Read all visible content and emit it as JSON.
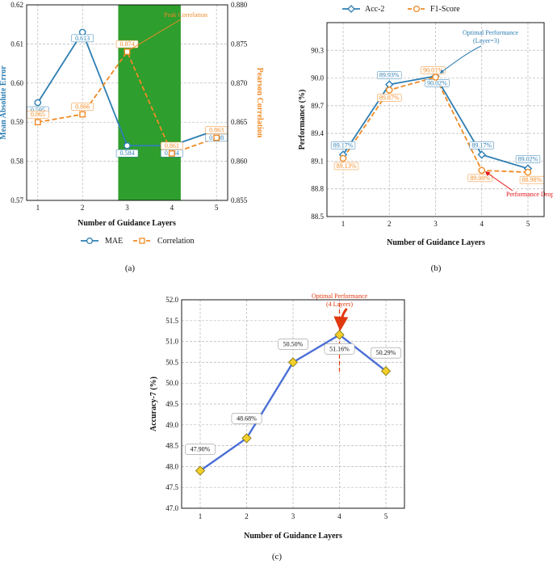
{
  "colors": {
    "mae": "#2e7eb3",
    "corr": "#f08a24",
    "acc2": "#2e7eb3",
    "f1": "#f08a24",
    "acc7_line": "#4b6fd6",
    "acc7_marker": "#f2cf2a",
    "highlight": "#2e9e2e",
    "annotation": "#e03a10",
    "drop": "#e51010"
  },
  "chart_data": [
    {
      "id": "a",
      "type": "line",
      "subfigure_label": "(a)",
      "categories": [
        1,
        2,
        3,
        4,
        5
      ],
      "xlabel": "Number of Guidance Layers",
      "ylabel_left": "Mean Absolute Error",
      "ylabel_right": "Pearson Correlation",
      "ylim_left": [
        0.57,
        0.62
      ],
      "yticks_left": [
        "0.57",
        "0.58",
        "0.59",
        "0.60",
        "0.61",
        "0.62"
      ],
      "ylim_right": [
        0.855,
        0.88
      ],
      "yticks_right": [
        "0.855",
        "0.860",
        "0.865",
        "0.870",
        "0.875",
        "0.880"
      ],
      "highlight_range": [
        2.8,
        4.2
      ],
      "series": [
        {
          "name": "MAE",
          "axis": "left",
          "values": [
            0.595,
            0.613,
            0.584,
            0.584,
            0.588
          ],
          "labels": [
            "0.595",
            "0.613",
            "0.584",
            "0.584",
            "0.588"
          ]
        },
        {
          "name": "Correlation",
          "axis": "right",
          "values": [
            0.865,
            0.866,
            0.874,
            0.861,
            0.863
          ],
          "labels": [
            "0.865",
            "0.866",
            "0.874",
            "0.861",
            "0.863"
          ]
        }
      ],
      "annotation": {
        "text": "Peak Correlation",
        "x": 3,
        "y": 0.874
      },
      "legend": [
        "MAE",
        "Correlation"
      ],
      "legend_position": "bottom"
    },
    {
      "id": "b",
      "type": "line",
      "subfigure_label": "(b)",
      "categories": [
        1,
        2,
        3,
        4,
        5
      ],
      "xlabel": "Number of Guidance Layers",
      "ylabel": "Performance (%)",
      "ylim": [
        88.5,
        90.6
      ],
      "yticks": [
        "88.5",
        "88.8",
        "89.1",
        "89.4",
        "89.7",
        "90.0",
        "90.3"
      ],
      "series": [
        {
          "name": "Acc-2",
          "values": [
            89.17,
            89.93,
            90.02,
            89.17,
            89.02
          ],
          "labels": [
            "89.17%",
            "89.93%",
            "90.02%",
            "89.17%",
            "89.02%"
          ]
        },
        {
          "name": "F1-Score",
          "values": [
            89.13,
            89.87,
            90.01,
            89.0,
            88.98
          ],
          "labels": [
            "89.13%",
            "89.87%",
            "90.01%",
            "89.00%",
            "88.98%"
          ]
        }
      ],
      "annotations": [
        {
          "text_lines": [
            "Optimal Performance",
            "(Layer=3)"
          ],
          "x": 3,
          "y": 90.02
        },
        {
          "text": "Performance Drop",
          "x": 4,
          "y": 89.0
        }
      ],
      "legend": [
        "Acc-2",
        "F1-Score"
      ],
      "legend_position": "top"
    },
    {
      "id": "c",
      "type": "line",
      "subfigure_label": "(c)",
      "categories": [
        1,
        2,
        3,
        4,
        5
      ],
      "xlabel": "Number of Guidance Layers",
      "ylabel": "Accuracy-7 (%)",
      "ylim": [
        47.0,
        52.0
      ],
      "yticks": [
        "47.0",
        "47.5",
        "48.0",
        "48.5",
        "49.0",
        "49.5",
        "50.0",
        "50.5",
        "51.0",
        "51.5",
        "52.0"
      ],
      "series": [
        {
          "name": "Accuracy-7",
          "values": [
            47.9,
            48.68,
            50.5,
            51.16,
            50.29
          ],
          "labels": [
            "47.90%",
            "48.68%",
            "50.50%",
            "51.16%",
            "50.29%"
          ]
        }
      ],
      "annotation": {
        "text_lines": [
          "Optimal Performance",
          "(4 Layers)"
        ],
        "x": 4,
        "y": 51.16
      }
    }
  ]
}
